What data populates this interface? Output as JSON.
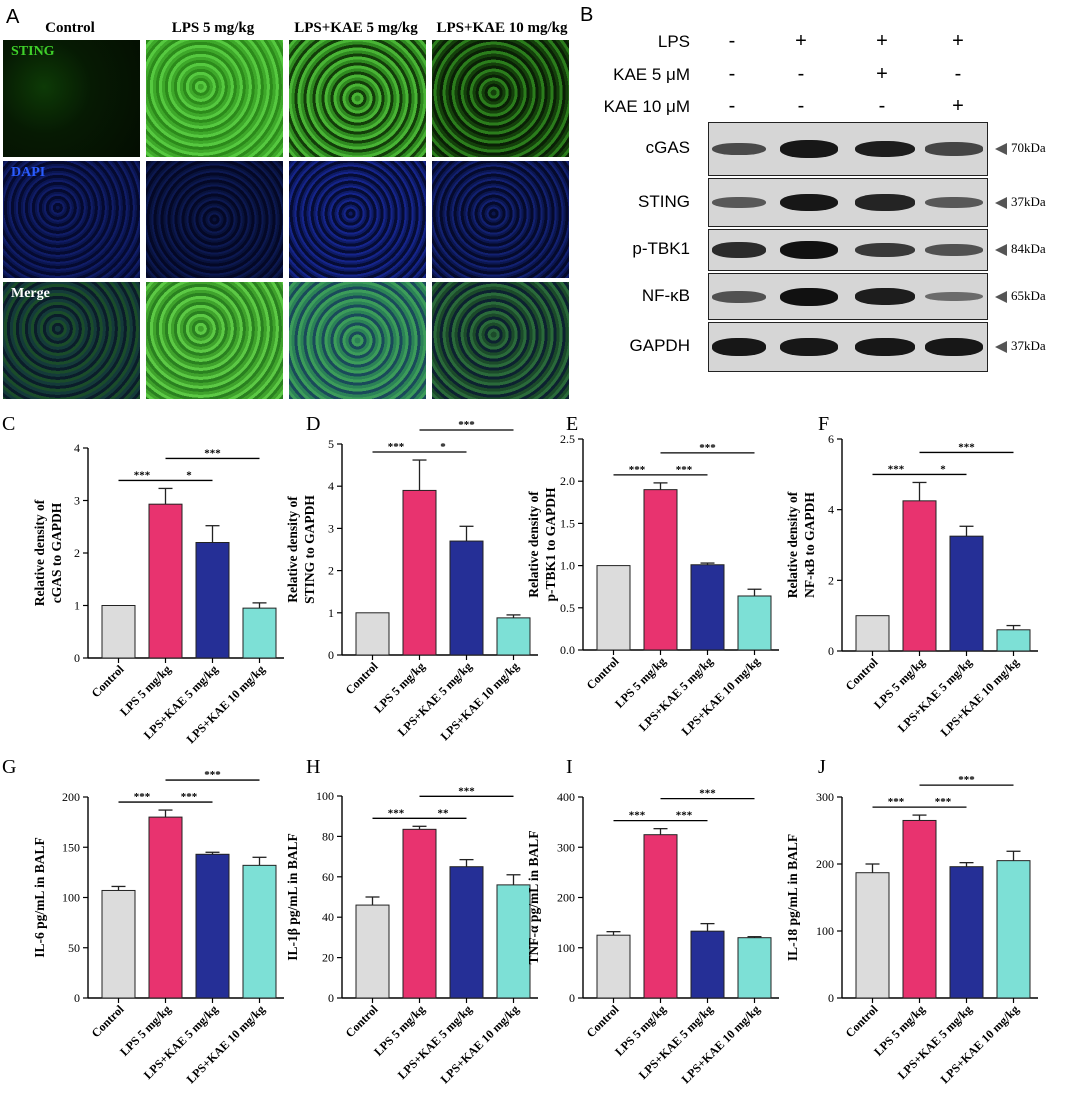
{
  "panelA": {
    "letter": "A",
    "columns": [
      "Control",
      "LPS 5 mg/kg",
      "LPS+KAE 5 mg/kg",
      "LPS+KAE 10 mg/kg"
    ],
    "rows": [
      {
        "label": "STING",
        "label_color": "#3fd12a"
      },
      {
        "label": "DAPI",
        "label_color": "#2a5cff"
      },
      {
        "label": "Merge",
        "label_color": "#ffffff"
      }
    ]
  },
  "panelB": {
    "letter": "B",
    "conditions": [
      {
        "label": "LPS",
        "signs": [
          "-",
          "+",
          "+",
          "+"
        ]
      },
      {
        "label": "KAE 5 μM",
        "signs": [
          "-",
          "-",
          "+",
          "-"
        ]
      },
      {
        "label": "KAE 10 μM",
        "signs": [
          "-",
          "-",
          "-",
          "+"
        ]
      }
    ],
    "blots": [
      {
        "protein": "cGAS",
        "kda": "70kDa",
        "intensity": [
          0.55,
          0.95,
          0.9,
          0.6
        ]
      },
      {
        "protein": "STING",
        "kda": "37kDa",
        "intensity": [
          0.45,
          0.95,
          0.85,
          0.45
        ]
      },
      {
        "protein": "p-TBK1",
        "kda": "84kDa",
        "intensity": [
          0.8,
          1.0,
          0.7,
          0.5
        ]
      },
      {
        "protein": "NF-κB",
        "kda": "65kDa",
        "intensity": [
          0.5,
          1.0,
          0.9,
          0.3
        ]
      },
      {
        "protein": "GAPDH",
        "kda": "37kDa",
        "intensity": [
          0.95,
          0.95,
          0.95,
          0.95
        ]
      }
    ]
  },
  "colors": {
    "control": "#dcdcdc",
    "lps": "#e8336f",
    "kae5": "#252f96",
    "kae10": "#7de0d6"
  },
  "chart_data": [
    {
      "letter": "C",
      "type": "bar",
      "categories": [
        "Control",
        "LPS 5 mg/kg",
        "LPS+KAE 5 mg/kg",
        "LPS+KAE 10 mg/kg"
      ],
      "values": [
        1.0,
        2.93,
        2.2,
        0.95
      ],
      "errors": [
        0,
        0.3,
        0.32,
        0.1
      ],
      "ylabel": [
        "Relative density of",
        "cGAS to GAPDH"
      ],
      "ylim": [
        0,
        4
      ],
      "yticks": [
        "0",
        "1",
        "2",
        "3",
        "4"
      ],
      "ytick_values": [
        0,
        1,
        2,
        3,
        4
      ],
      "sig": [
        {
          "from": 0,
          "to": 1,
          "label": "***"
        },
        {
          "from": 1,
          "to": 2,
          "label": "*"
        },
        {
          "from": 1,
          "to": 3,
          "label": "***"
        }
      ]
    },
    {
      "letter": "D",
      "type": "bar",
      "categories": [
        "Control",
        "LPS 5 mg/kg",
        "LPS+KAE 5 mg/kg",
        "LPS+KAE 10 mg/kg"
      ],
      "values": [
        1.0,
        3.9,
        2.7,
        0.88
      ],
      "errors": [
        0,
        0.72,
        0.35,
        0.07
      ],
      "ylabel": [
        "Relative density of",
        "STING to GAPDH"
      ],
      "ylim": [
        0,
        5
      ],
      "yticks": [
        "0",
        "1",
        "2",
        "3",
        "4",
        "5"
      ],
      "ytick_values": [
        0,
        1,
        2,
        3,
        4,
        5
      ],
      "sig": [
        {
          "from": 0,
          "to": 1,
          "label": "***"
        },
        {
          "from": 1,
          "to": 2,
          "label": "*"
        },
        {
          "from": 1,
          "to": 3,
          "label": "***"
        }
      ]
    },
    {
      "letter": "E",
      "type": "bar",
      "categories": [
        "Control",
        "LPS 5 mg/kg",
        "LPS+KAE 5 mg/kg",
        "LPS+KAE 10 mg/kg"
      ],
      "values": [
        1.0,
        1.9,
        1.01,
        0.64
      ],
      "errors": [
        0,
        0.08,
        0.02,
        0.08
      ],
      "ylabel": [
        "Relative density of",
        "p-TBK1 to GAPDH"
      ],
      "ylim": [
        0,
        2.5
      ],
      "yticks": [
        "0.0",
        "0.5",
        "1.0",
        "1.5",
        "2.0",
        "2.5"
      ],
      "ytick_values": [
        0,
        0.5,
        1.0,
        1.5,
        2.0,
        2.5
      ],
      "sig": [
        {
          "from": 0,
          "to": 1,
          "label": "***"
        },
        {
          "from": 1,
          "to": 2,
          "label": "***"
        },
        {
          "from": 1,
          "to": 3,
          "label": "***"
        }
      ]
    },
    {
      "letter": "F",
      "type": "bar",
      "categories": [
        "Control",
        "LPS 5 mg/kg",
        "LPS+KAE 5 mg/kg",
        "LPS+KAE 10 mg/kg"
      ],
      "values": [
        1.0,
        4.25,
        3.25,
        0.6
      ],
      "errors": [
        0,
        0.52,
        0.28,
        0.12
      ],
      "ylabel": [
        "Relative density of",
        "NF-κB to GAPDH"
      ],
      "ylim": [
        0,
        6
      ],
      "yticks": [
        "0",
        "2",
        "4",
        "6"
      ],
      "ytick_values": [
        0,
        2,
        4,
        6
      ],
      "sig": [
        {
          "from": 0,
          "to": 1,
          "label": "***"
        },
        {
          "from": 1,
          "to": 2,
          "label": "*"
        },
        {
          "from": 1,
          "to": 3,
          "label": "***"
        }
      ]
    },
    {
      "letter": "G",
      "type": "bar",
      "categories": [
        "Control",
        "LPS 5 mg/kg",
        "LPS+KAE 5 mg/kg",
        "LPS+KAE 10 mg/kg"
      ],
      "values": [
        107,
        180,
        143,
        132
      ],
      "errors": [
        4,
        7,
        2,
        8
      ],
      "ylabel": [
        "IL-6 pg/mL in BALF"
      ],
      "ylim": [
        0,
        200
      ],
      "yticks": [
        "0",
        "50",
        "100",
        "150",
        "200"
      ],
      "ytick_values": [
        0,
        50,
        100,
        150,
        200
      ],
      "sig": [
        {
          "from": 0,
          "to": 1,
          "label": "***"
        },
        {
          "from": 1,
          "to": 2,
          "label": "***"
        },
        {
          "from": 1,
          "to": 3,
          "label": "***"
        }
      ]
    },
    {
      "letter": "H",
      "type": "bar",
      "categories": [
        "Control",
        "LPS 5 mg/kg",
        "LPS+KAE 5 mg/kg",
        "LPS+KAE 10 mg/kg"
      ],
      "values": [
        46,
        83.5,
        65,
        56
      ],
      "errors": [
        4,
        1.5,
        3.5,
        5
      ],
      "ylabel": [
        "IL-1β pg/mL in BALF"
      ],
      "ylim": [
        0,
        100
      ],
      "yticks": [
        "0",
        "20",
        "40",
        "60",
        "80",
        "100"
      ],
      "ytick_values": [
        0,
        20,
        40,
        60,
        80,
        100
      ],
      "sig": [
        {
          "from": 0,
          "to": 1,
          "label": "***"
        },
        {
          "from": 1,
          "to": 2,
          "label": "**"
        },
        {
          "from": 1,
          "to": 3,
          "label": "***"
        }
      ]
    },
    {
      "letter": "I",
      "type": "bar",
      "categories": [
        "Control",
        "LPS 5 mg/kg",
        "LPS+KAE 5 mg/kg",
        "LPS+KAE 10 mg/kg"
      ],
      "values": [
        125,
        325,
        133,
        120
      ],
      "errors": [
        7,
        12,
        15,
        2
      ],
      "ylabel": [
        "TNF-α pg/mL in BALF"
      ],
      "ylim": [
        0,
        400
      ],
      "yticks": [
        "0",
        "100",
        "200",
        "300",
        "400"
      ],
      "ytick_values": [
        0,
        100,
        200,
        300,
        400
      ],
      "sig": [
        {
          "from": 0,
          "to": 1,
          "label": "***"
        },
        {
          "from": 1,
          "to": 2,
          "label": "***"
        },
        {
          "from": 1,
          "to": 3,
          "label": "***"
        }
      ]
    },
    {
      "letter": "J",
      "type": "bar",
      "categories": [
        "Control",
        "LPS 5 mg/kg",
        "LPS+KAE 5 mg/kg",
        "LPS+KAE 10 mg/kg"
      ],
      "values": [
        187,
        265,
        196,
        205
      ],
      "errors": [
        13,
        8,
        6,
        14
      ],
      "ylabel": [
        "IL-18 pg/mL in BALF"
      ],
      "ylim": [
        0,
        300
      ],
      "yticks": [
        "0",
        "100",
        "200",
        "300"
      ],
      "ytick_values": [
        0,
        100,
        200,
        300
      ],
      "sig": [
        {
          "from": 0,
          "to": 1,
          "label": "***"
        },
        {
          "from": 1,
          "to": 2,
          "label": "***"
        },
        {
          "from": 1,
          "to": 3,
          "label": "***"
        }
      ]
    }
  ]
}
